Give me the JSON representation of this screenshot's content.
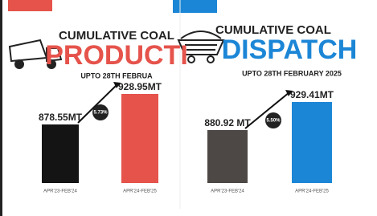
{
  "chart_data": [
    {
      "type": "bar",
      "title": "CUMULATIVE COAL",
      "subtitle": "PRODUCTI",
      "note": "UPTO 28TH FEBRUA",
      "categories": [
        "APR'23-FEB'24",
        "APR'24-FEB'25"
      ],
      "values": [
        878.55,
        928.95
      ],
      "value_labels": [
        "878.55MT",
        "928.95MT"
      ],
      "colors": [
        "#141414",
        "#e5534b"
      ],
      "accent": "#e5534b",
      "growth": "5.73%"
    },
    {
      "type": "bar",
      "title": "CUMULATIVE COAL",
      "subtitle": "DISPATCH",
      "note": "UPTO 28TH FEBRUARY 2025",
      "categories": [
        "APR'23-FEB'24",
        "APR'24-FEB'25"
      ],
      "values": [
        880.92,
        929.41
      ],
      "value_labels": [
        "880.92 MT",
        "929.41MT"
      ],
      "colors": [
        "#4d4845",
        "#1c86d6"
      ],
      "accent": "#1c86d6",
      "growth": "5.50%"
    }
  ]
}
